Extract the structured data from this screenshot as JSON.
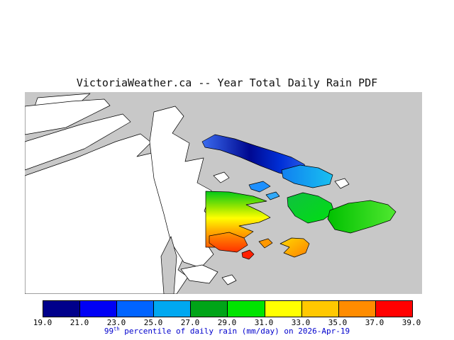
{
  "title": "VictoriaWeather.ca -- Year Total Daily Rain PDF",
  "map": {
    "sea_color": "#c8c8c8",
    "land_color": "#ffffff",
    "outline_color": "#000000"
  },
  "colorbar": {
    "tick_labels": [
      "19.0",
      "21.0",
      "23.0",
      "25.0",
      "27.0",
      "29.0",
      "31.0",
      "33.0",
      "35.0",
      "37.0",
      "39.0"
    ],
    "colors": [
      "#00008b",
      "#0000f5",
      "#0064ff",
      "#00a8f0",
      "#00a418",
      "#00e400",
      "#ffff00",
      "#ffc800",
      "#ff8c00",
      "#ff0000"
    ]
  },
  "caption": {
    "num": "99",
    "sup": "th",
    "rest": " percentile of daily rain (mm/day) on 2026-Apr-19",
    "color": "#0000cd"
  },
  "chart_data": {
    "type": "heatmap",
    "title": "VictoriaWeather.ca -- Year Total Daily Rain PDF",
    "legend_label": "99th percentile of daily rain (mm/day) on 2026-Apr-19",
    "units": "mm/day",
    "date": "2026-Apr-19",
    "scale_boundaries": [
      19.0,
      21.0,
      23.0,
      25.0,
      27.0,
      29.0,
      31.0,
      33.0,
      35.0,
      37.0,
      39.0
    ],
    "scale_colors": [
      "#00008b",
      "#0000f5",
      "#0064ff",
      "#00a8f0",
      "#00a418",
      "#00e400",
      "#ffff00",
      "#ffc800",
      "#ff8c00",
      "#ff0000"
    ],
    "legend_position": "bottom",
    "notes": "Geographic map of the southern Gulf Islands; islands shaded by 99th-percentile daily rain value per color scale."
  }
}
